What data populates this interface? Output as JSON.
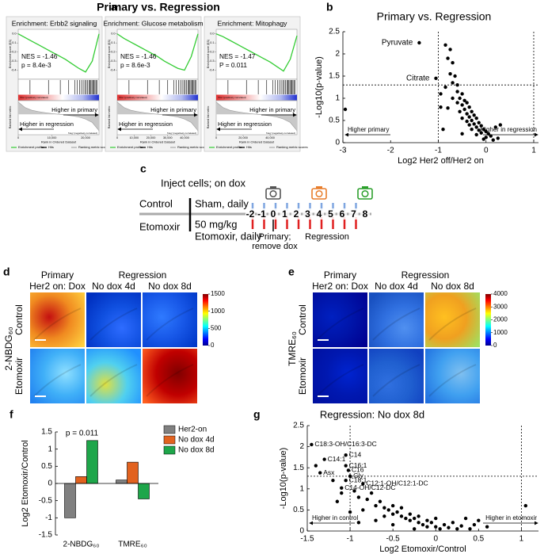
{
  "panel_labels": [
    "a",
    "b",
    "c",
    "d",
    "e",
    "f",
    "g"
  ],
  "panel_a_title": "Primary vs. Regression",
  "chart_data": [
    {
      "type": "line",
      "title": "Enrichment: Erbb2 signaling",
      "color": "#33cc33",
      "x": [
        0,
        2000,
        4000,
        6000,
        8000,
        10000,
        12000,
        14000,
        16000,
        18000,
        20000,
        22000,
        24000
      ],
      "values": [
        0,
        -0.04,
        -0.08,
        -0.12,
        -0.16,
        -0.2,
        -0.24,
        -0.28,
        -0.33,
        -0.38,
        -0.42,
        -0.3,
        0
      ],
      "ranked_metric": [
        0.9,
        0.5,
        0.3,
        0.2,
        0.12,
        0.05,
        0,
        -0.05,
        -0.12,
        -0.2,
        -0.35,
        -0.6,
        -1.2
      ],
      "metric_ylim": [
        -1.5,
        1
      ],
      "hits": [
        3500,
        9000,
        12500,
        15000,
        16800,
        17500,
        18200,
        18800,
        19300,
        19800,
        20200,
        20600,
        21000,
        21300,
        21600,
        21900,
        22200,
        22500,
        22800,
        23100,
        23400
      ],
      "xlim": [
        0,
        24000
      ],
      "xticks": [
        0,
        {
          "value": 10000,
          "label": "10,000"
        },
        {
          "value": 20000,
          "label": "20,000"
        }
      ],
      "ylim": [
        -0.5,
        0.05
      ],
      "yticks": [
        {
          "value": 0,
          "label": "0.0"
        },
        -0.1,
        -0.2,
        -0.3,
        -0.4
      ],
      "annotations": [
        "NES = -1.46",
        "p = 8.4e-3"
      ],
      "right_label": "Higher in primary",
      "left_label": "Higher in regression",
      "pos_label": "'Pos' (positively correlated)",
      "neg_label": "'Neg' (negatively correlated)",
      "ylabel": "Enrichment score (ES)",
      "metric_ylabel": "Ranked list metric",
      "xlabel": "Rank in Ordered Dataset",
      "legend": [
        "Enrichment profile",
        "Hits",
        "Ranking metric scores"
      ]
    },
    {
      "type": "line",
      "title": "Enrichment: Glucose metabolism",
      "color": "#33cc33",
      "x": [
        0,
        4000,
        8000,
        12000,
        16000,
        20000,
        24000,
        28000,
        32000,
        36000,
        40000,
        44000,
        48000
      ],
      "values": [
        0,
        -0.05,
        -0.09,
        -0.13,
        -0.17,
        -0.21,
        -0.25,
        -0.3,
        -0.34,
        -0.38,
        -0.4,
        -0.25,
        0
      ],
      "ranked_metric": [
        0.9,
        0.5,
        0.3,
        0.2,
        0.12,
        0.05,
        0,
        -0.05,
        -0.12,
        -0.2,
        -0.35,
        -0.6,
        -1.2
      ],
      "metric_ylim": [
        -1.5,
        1
      ],
      "hits": [
        7000,
        18000,
        25000,
        30000,
        33600,
        35000,
        36400,
        37600,
        38600,
        39600,
        40400,
        41200,
        42000,
        42600,
        43200,
        43800,
        44400,
        45000,
        45600,
        46200,
        46800
      ],
      "xlim": [
        0,
        48000
      ],
      "xticks": [
        0,
        {
          "value": 10000,
          "label": "10,000"
        },
        {
          "value": 20000,
          "label": "20,000"
        },
        {
          "value": 30000,
          "label": "30,000"
        },
        {
          "value": 40000,
          "label": "40,000"
        }
      ],
      "ylim": [
        -0.5,
        0.05
      ],
      "yticks": [
        {
          "value": 0,
          "label": "0.0"
        },
        -0.1,
        -0.2,
        -0.3,
        -0.4
      ],
      "annotations": [
        "NES = -1.46",
        "p = 8.6e-3"
      ],
      "right_label": "Higher in primary",
      "left_label": "Higher in regression",
      "pos_label": "'Pos' (positively correlated)",
      "neg_label": "'Neg' (negatively correlated)",
      "ylabel": "Enrichment score (ES)",
      "metric_ylabel": "Ranked list metric",
      "xlabel": "Rank in Ordered Dataset",
      "legend": [
        "Enrichment profile",
        "Hits",
        "Ranking metric scores"
      ]
    },
    {
      "type": "line",
      "title": "Enrichment: Mitophagy",
      "color": "#33cc33",
      "x": [
        0,
        5000,
        10000,
        15000,
        20000,
        25000,
        30000,
        35000,
        40000,
        45000,
        50000,
        55000,
        60000
      ],
      "values": [
        0,
        -0.03,
        -0.07,
        -0.11,
        -0.15,
        -0.19,
        -0.23,
        -0.27,
        -0.31,
        -0.36,
        -0.41,
        -0.28,
        -0.02
      ],
      "ranked_metric": [
        0.9,
        0.5,
        0.3,
        0.2,
        0.12,
        0.05,
        0,
        -0.05,
        -0.12,
        -0.2,
        -0.35,
        -0.6,
        -1.2
      ],
      "metric_ylim": [
        -1.5,
        1
      ],
      "hits": [
        8750,
        22500,
        31250,
        37500,
        42000,
        43750,
        45500,
        47000,
        48250,
        49500,
        50500,
        51500,
        52500,
        53250,
        54000,
        54750,
        55500,
        56250,
        57000,
        57750,
        58500
      ],
      "xlim": [
        0,
        60000
      ],
      "xticks": [
        0,
        {
          "value": 20000,
          "label": "20,000"
        },
        {
          "value": 40000,
          "label": "40,000"
        }
      ],
      "ylim": [
        -0.5,
        0.05
      ],
      "yticks": [
        {
          "value": 0,
          "label": "0.0"
        },
        -0.1,
        -0.2,
        -0.3,
        -0.4
      ],
      "annotations": [
        "NES = -1.47",
        "P = 0.011"
      ],
      "right_label": "Higher in primary",
      "left_label": "Higher in regression",
      "pos_label": "'Pos' (positively correlated)",
      "neg_label": "'Neg' (negatively correlated)",
      "ylabel": "Enrichment score (ES)",
      "metric_ylabel": "Ranked list metric",
      "xlabel": "Rank in Ordered Dataset",
      "legend": [
        "Enrichment profile",
        "Hits",
        "Ranking metric scores"
      ]
    },
    {
      "type": "scatter",
      "title": "Primary vs. Regression",
      "color": "#000000",
      "x": [
        -2.95,
        -0.85,
        -0.75,
        -0.8,
        -0.7,
        -0.75,
        -0.65,
        -0.7,
        -0.6,
        -0.85,
        -0.95,
        -0.6,
        -0.5,
        -0.7,
        -0.55,
        -0.45,
        -0.6,
        -0.4,
        -0.5,
        -0.35,
        -0.95,
        -0.8,
        -0.45,
        -0.3,
        -0.55,
        -0.4,
        -0.25,
        -0.35,
        -0.5,
        -0.2,
        -0.3,
        -0.4,
        -0.15,
        -0.25,
        -0.35,
        -0.1,
        -0.2,
        -0.05,
        -0.3,
        -0.15,
        0,
        -0.1,
        0.05,
        -0.2,
        0.1,
        0,
        -0.05,
        0.15,
        0.3,
        0.2,
        -0.9,
        -0.5,
        0.25
      ],
      "values": [
        0.75,
        2.2,
        2.1,
        1.9,
        1.8,
        1.55,
        1.5,
        1.35,
        1.3,
        1.25,
        1.1,
        1.15,
        1.1,
        1.0,
        1.0,
        0.95,
        0.9,
        0.9,
        0.85,
        0.8,
        0.8,
        0.78,
        0.75,
        0.7,
        0.7,
        0.65,
        0.62,
        0.58,
        0.55,
        0.55,
        0.5,
        0.48,
        0.45,
        0.42,
        0.4,
        0.38,
        0.35,
        0.3,
        0.3,
        0.28,
        0.25,
        0.22,
        0.2,
        0.18,
        0.15,
        0.12,
        0.08,
        0.06,
        0.4,
        0.35,
        0.3,
        0.2,
        0.1
      ],
      "labeled_points": [
        {
          "label": "Pyruvate",
          "x": -1.4,
          "y": 2.25
        },
        {
          "label": "Citrate",
          "x": -1.05,
          "y": 1.45
        }
      ],
      "xlim": [
        -3,
        1.1
      ],
      "xticks": [
        -3,
        -2,
        -1,
        0,
        1
      ],
      "ylim": [
        0,
        2.5
      ],
      "yticks": [
        0,
        0.5,
        1,
        1.5,
        2,
        2.5
      ],
      "vlines": [
        -1,
        1
      ],
      "hline": 1.3,
      "xlabel": "Log2 Her2 off/Her2 on",
      "ylabel": "-Log10(p-value)",
      "left_note": "Higher primary",
      "right_note": "Higher in regression"
    },
    {
      "type": "bar",
      "categories": [
        "2-NBDG₆₀",
        "TMRE₆₀"
      ],
      "series": [
        {
          "name": "Her2-on",
          "color": "#808080",
          "values": [
            -1.0,
            0.1
          ]
        },
        {
          "name": "No dox 4d",
          "color": "#e2621f",
          "values": [
            0.2,
            0.62
          ]
        },
        {
          "name": "No dox 8d",
          "color": "#1ea64a",
          "values": [
            1.25,
            -0.45
          ]
        }
      ],
      "ylim": [
        -1.5,
        1.5
      ],
      "yticks": [
        -1.5,
        -1,
        -0.5,
        0,
        0.5,
        1,
        1.5
      ],
      "ylabel": "Log2 Etomoxir/Control",
      "annotation": "p = 0.011"
    },
    {
      "type": "scatter",
      "title": "Regression: No dox 8d",
      "color": "#000000",
      "x": [
        -1.4,
        -1.2,
        -1.1,
        -0.95,
        -0.9,
        -0.8,
        -0.75,
        -0.7,
        -0.65,
        -0.6,
        -0.55,
        -0.5,
        -0.5,
        -0.45,
        -0.4,
        -0.4,
        -0.35,
        -0.3,
        -0.3,
        -0.25,
        -0.2,
        -0.2,
        -0.15,
        -0.1,
        -0.1,
        -0.05,
        0,
        0,
        0.05,
        0.1,
        0.15,
        0.2,
        0.25,
        0.3,
        0.35,
        0.4,
        0.45,
        0.5,
        1.05,
        -1.15,
        -0.85,
        -0.6,
        -0.7,
        -0.5,
        -0.9,
        -1.0,
        -0.25,
        0.6
      ],
      "values": [
        1.55,
        1.2,
        0.9,
        0.95,
        0.8,
        0.75,
        0.9,
        0.6,
        0.7,
        0.55,
        0.5,
        0.6,
        0.4,
        0.45,
        0.35,
        0.55,
        0.3,
        0.4,
        0.25,
        0.3,
        0.2,
        0.35,
        0.15,
        0.25,
        0.1,
        0.2,
        0.1,
        0.3,
        0.05,
        0.15,
        0.08,
        0.2,
        0.05,
        0.12,
        0.3,
        0.05,
        0.15,
        0.25,
        0.6,
        0.7,
        0.5,
        0.35,
        0.25,
        0.15,
        0.2,
        0.45,
        0.05,
        0.1
      ],
      "labeled_points": [
        {
          "label": "C18:3-OH/C16:3-DC",
          "x": -1.45,
          "y": 2.05
        },
        {
          "label": "C14:1",
          "x": -1.3,
          "y": 1.7
        },
        {
          "label": "C14",
          "x": -1.05,
          "y": 1.8
        },
        {
          "label": "C16:1",
          "x": -1.05,
          "y": 1.55
        },
        {
          "label": "Asx",
          "x": -1.35,
          "y": 1.38
        },
        {
          "label": "C16",
          "x": -1.02,
          "y": 1.44
        },
        {
          "label": "Gly",
          "x": -1.0,
          "y": 1.3
        },
        {
          "label": "C18:1",
          "x": -1.05,
          "y": 1.2
        },
        {
          "label": "C12:1-OH/C12:1-DC",
          "x": -0.85,
          "y": 1.12
        },
        {
          "label": "C14-OH/C12-DC",
          "x": -1.1,
          "y": 1.02
        }
      ],
      "xlim": [
        -1.5,
        1.2
      ],
      "xticks": [
        -1.5,
        -1,
        -0.5,
        0,
        0.5,
        1
      ],
      "ylim": [
        0,
        2.5
      ],
      "yticks": [
        0,
        0.5,
        1,
        1.5,
        2,
        2.5
      ],
      "vlines": [
        -1,
        1
      ],
      "hline": 1.3,
      "xlabel": "Log2 Etomoxir/Control",
      "ylabel": "-Log10(p-value)",
      "left_note": "Higher in control",
      "right_note": "Higher in etomoxir"
    }
  ],
  "timeline": {
    "title": "Inject cells; on dox",
    "rows": [
      "Control",
      "Etomoxir"
    ],
    "control_treatment": "Sham, daily",
    "etomoxir_treatment": [
      "50 mg/kg",
      "Etomoxir, daily"
    ],
    "days": [
      -2,
      -1,
      0,
      1,
      2,
      3,
      4,
      5,
      6,
      7,
      8
    ],
    "primary_note": [
      "Primary;",
      "remove dox"
    ],
    "regression_note": "Regression"
  },
  "imaging": [
    {
      "stain": "2-NBDG₆₀",
      "group_headers": [
        "Primary",
        "Regression"
      ],
      "column_headers": [
        "Her2 on: Dox",
        "No dox 4d",
        "No dox 8d"
      ],
      "rows": [
        "Control",
        "Etomoxir"
      ],
      "colorbar_lim": [
        0,
        1500
      ],
      "colorbar_ticks": [
        0,
        500,
        1000,
        1500
      ]
    },
    {
      "stain": "TMRE₆₀",
      "group_headers": [
        "Primary",
        "Regression"
      ],
      "column_headers": [
        "Her2 on: Dox",
        "No dox 4d",
        "No dox 8d"
      ],
      "rows": [
        "Control",
        "Etomoxir"
      ],
      "colorbar_lim": [
        0,
        4000
      ],
      "colorbar_ticks": [
        0,
        1000,
        2000,
        3000,
        4000
      ]
    }
  ]
}
